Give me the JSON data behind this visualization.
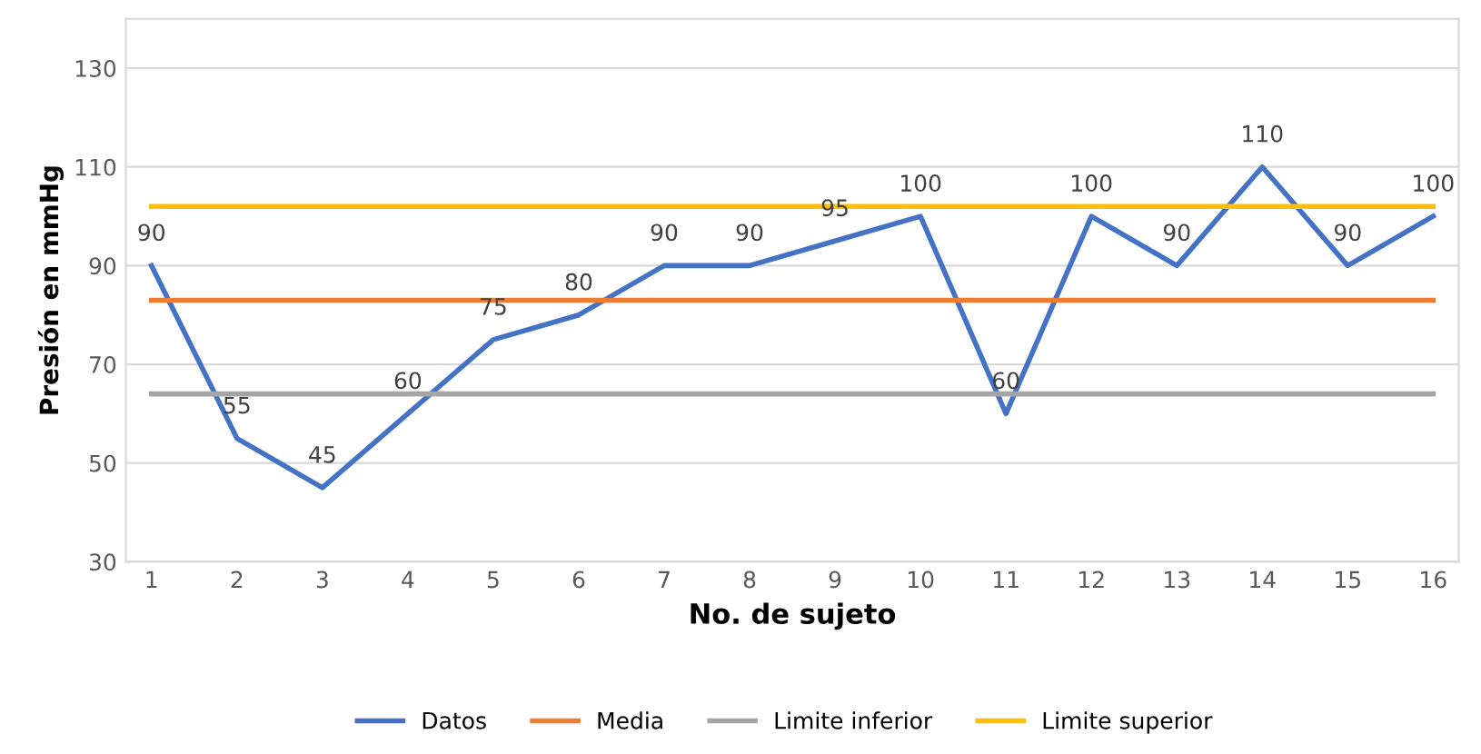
{
  "chart_data": {
    "type": "line",
    "xlabel": "No. de sujeto",
    "ylabel": "Presión en mmHg",
    "categories": [
      "1",
      "2",
      "3",
      "4",
      "5",
      "6",
      "7",
      "8",
      "9",
      "10",
      "11",
      "12",
      "13",
      "14",
      "15",
      "16"
    ],
    "series": [
      {
        "name": "Datos",
        "color": "#4472c4",
        "values": [
          90,
          55,
          45,
          60,
          75,
          80,
          90,
          90,
          95,
          100,
          60,
          100,
          90,
          110,
          90,
          100
        ],
        "value_labels": [
          "90",
          "55",
          "45",
          "60",
          "75",
          "80",
          "90",
          "90",
          "95",
          "100",
          "60",
          "100",
          "90",
          "110",
          "90",
          "100"
        ]
      },
      {
        "name": "Media",
        "color": "#ed7d31",
        "values": [
          83,
          83,
          83,
          83,
          83,
          83,
          83,
          83,
          83,
          83,
          83,
          83,
          83,
          83,
          83,
          83
        ]
      },
      {
        "name": "Limite inferior",
        "color": "#a5a5a5",
        "values": [
          64,
          64,
          64,
          64,
          64,
          64,
          64,
          64,
          64,
          64,
          64,
          64,
          64,
          64,
          64,
          64
        ]
      },
      {
        "name": "Limite superior",
        "color": "#ffc000",
        "values": [
          102,
          102,
          102,
          102,
          102,
          102,
          102,
          102,
          102,
          102,
          102,
          102,
          102,
          102,
          102,
          102
        ]
      }
    ],
    "ylim": [
      30,
      140
    ],
    "yticks": [
      30,
      50,
      70,
      90,
      110,
      130
    ],
    "grid": "y",
    "legend": "bottom"
  }
}
